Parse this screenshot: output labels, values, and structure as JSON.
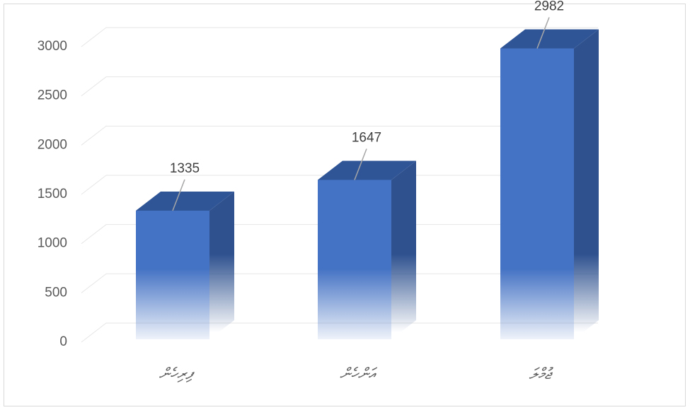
{
  "chart_data": {
    "type": "bar3d",
    "categories": [
      "ފިރިހެން",
      "އަންހެން",
      "ޖުމްލަ"
    ],
    "values": [
      1335,
      1647,
      2982
    ],
    "color": "#4472c4",
    "ylim": [
      0,
      3000
    ],
    "yticks": [
      0,
      500,
      1000,
      1500,
      2000,
      2500,
      3000
    ],
    "grid": true
  }
}
